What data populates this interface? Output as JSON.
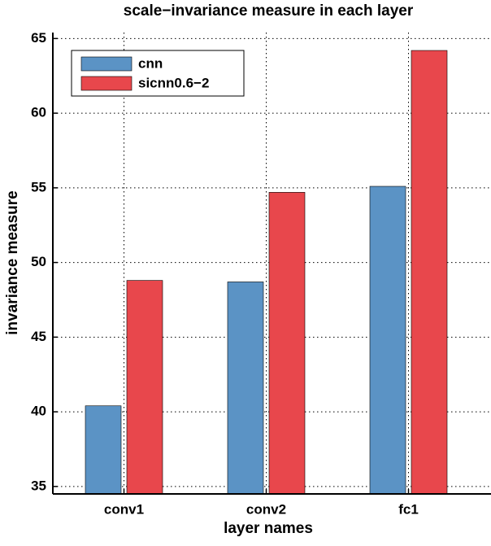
{
  "chart_data": {
    "type": "bar",
    "title": "scale−invariance measure in each layer",
    "xlabel": "layer names",
    "ylabel": "invariance measure",
    "categories": [
      "conv1",
      "conv2",
      "fc1"
    ],
    "series": [
      {
        "name": "cnn",
        "color": "#5b93c5",
        "values": [
          40.4,
          48.7,
          55.1
        ]
      },
      {
        "name": "sicnn0.6−2",
        "color": "#e8474c",
        "values": [
          48.8,
          54.7,
          64.2
        ]
      }
    ],
    "ylim": [
      34.5,
      65.4
    ],
    "yticks": [
      35,
      40,
      45,
      50,
      55,
      60,
      65
    ],
    "grid": true,
    "legend": "upper left"
  }
}
